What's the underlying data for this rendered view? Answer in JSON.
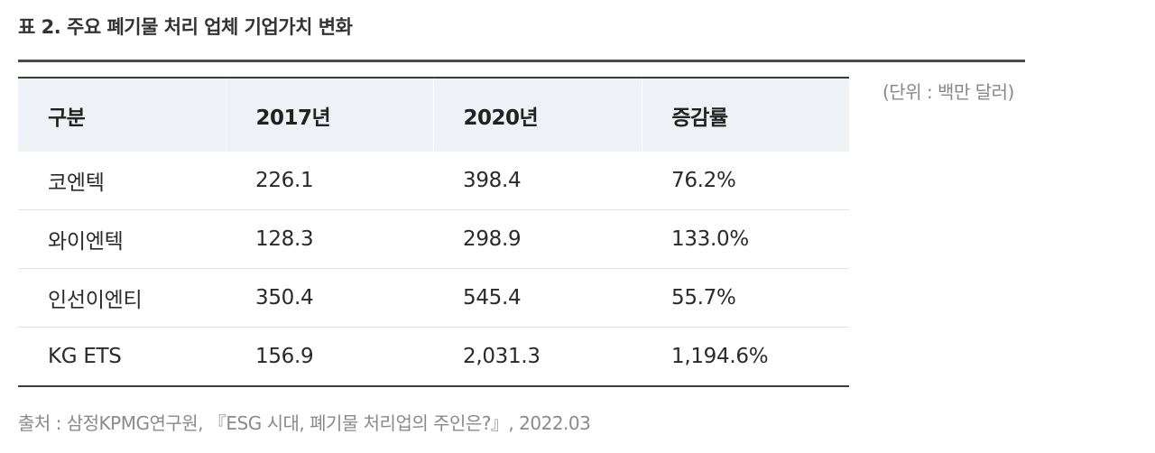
{
  "title": "표 2. 주요 폐기물 처리 업체 기업가치 변화",
  "unit": "(단위 : 백만 달러)",
  "table": {
    "headers": [
      "구분",
      "2017년",
      "2020년",
      "증감률"
    ],
    "rows": [
      [
        "코엔텍",
        "226.1",
        "398.4",
        "76.2%"
      ],
      [
        "와이엔텍",
        "128.3",
        "298.9",
        "133.0%"
      ],
      [
        "인선이엔티",
        "350.4",
        "545.4",
        "55.7%"
      ],
      [
        "KG ETS",
        "156.9",
        "2,031.3",
        "1,194.6%"
      ]
    ]
  },
  "source": "출처 : 삼정KPMG연구원, 『ESG 시대, 폐기물 처리업의 주인은?』, 2022.03"
}
